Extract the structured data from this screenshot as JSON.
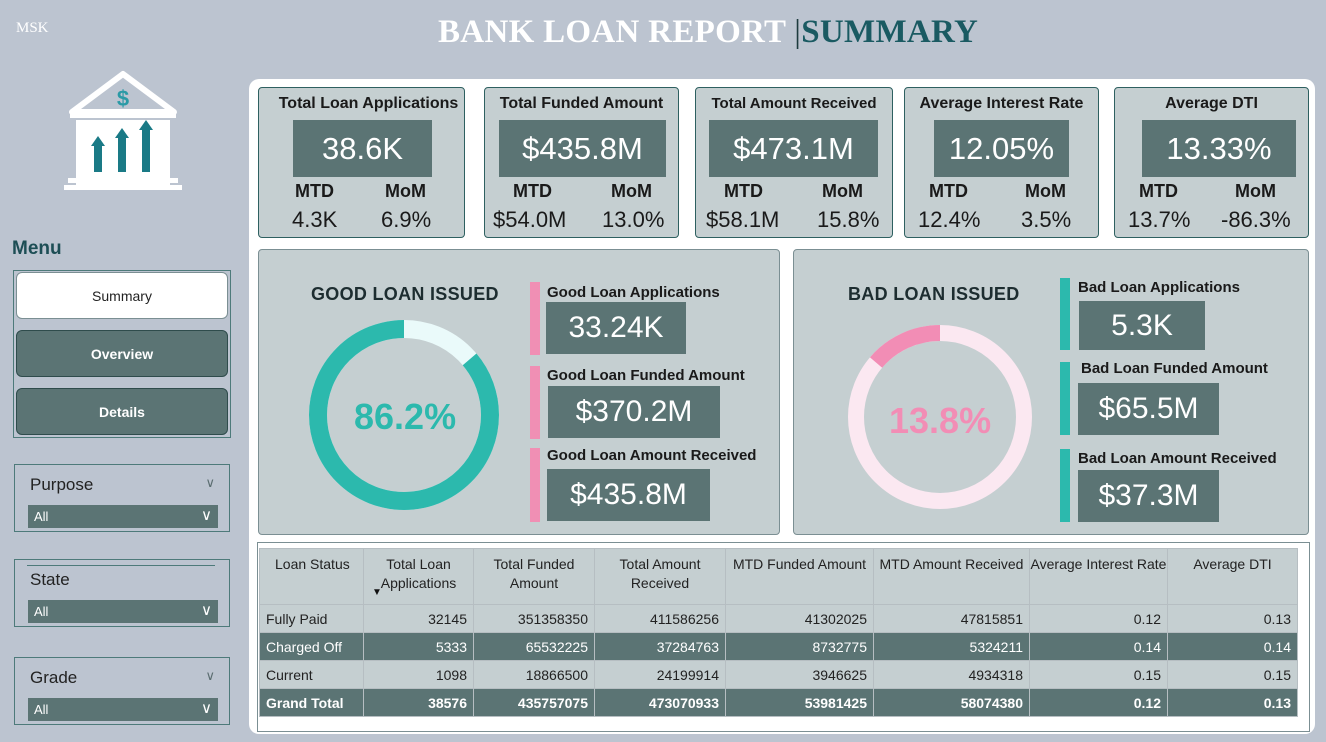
{
  "header": {
    "logo_text": "MSK",
    "title_part1": "BANK LOAN REPORT ",
    "title_sep": "|",
    "title_part2": "SUMMARY"
  },
  "sidebar": {
    "menu_label": "Menu",
    "nav": [
      {
        "label": "Summary",
        "active": true
      },
      {
        "label": "Overview",
        "active": false
      },
      {
        "label": "Details",
        "active": false
      }
    ],
    "filters": [
      {
        "title": "Purpose",
        "selected": "All"
      },
      {
        "title": "State",
        "selected": "All"
      },
      {
        "title": "Grade",
        "selected": "All"
      }
    ]
  },
  "kpis": [
    {
      "title": "Total Loan Applications",
      "value": "38.6K",
      "mtd_label": "MTD",
      "mom_label": "MoM",
      "mtd": "4.3K",
      "mom": "6.9%"
    },
    {
      "title": "Total Funded Amount",
      "value": "$435.8M",
      "mtd_label": "MTD",
      "mom_label": "MoM",
      "mtd": "$54.0M",
      "mom": "13.0%"
    },
    {
      "title": "Total Amount Received",
      "value": "$473.1M",
      "mtd_label": "MTD",
      "mom_label": "MoM",
      "mtd": "$58.1M",
      "mom": "15.8%"
    },
    {
      "title": "Average Interest Rate",
      "value": "12.05%",
      "mtd_label": "MTD",
      "mom_label": "MoM",
      "mtd": "12.4%",
      "mom": "3.5%"
    },
    {
      "title": "Average DTI",
      "value": "13.33%",
      "mtd_label": "MTD",
      "mom_label": "MoM",
      "mtd": "13.7%",
      "mom": "-86.3%"
    }
  ],
  "good_loan": {
    "title": "GOOD LOAN ISSUED",
    "percent_label": "86.2%",
    "percent": 86.2,
    "color": "#2cb9ad",
    "track_color": "#eafafa",
    "bar_color": "#f08fb4",
    "metrics": [
      {
        "label": "Good Loan Applications",
        "value": "33.24K"
      },
      {
        "label": "Good Loan Funded Amount",
        "value": "$370.2M"
      },
      {
        "label": "Good Loan Amount Received",
        "value": "$435.8M"
      }
    ]
  },
  "bad_loan": {
    "title": "BAD LOAN ISSUED",
    "percent_label": "13.8%",
    "percent": 13.8,
    "color": "#f28db5",
    "track_color": "#fbe8f1",
    "bar_color": "#2cb9ad",
    "metrics": [
      {
        "label": "Bad Loan Applications",
        "value": "5.3K"
      },
      {
        "label": "Bad Loan Funded Amount",
        "value": "$65.5M"
      },
      {
        "label": "Bad Loan Amount Received",
        "value": "$37.3M"
      }
    ]
  },
  "table": {
    "headers": [
      "Loan Status",
      "Total Loan Applications",
      "Total Funded Amount",
      "Total Amount Received",
      "MTD Funded Amount",
      "MTD Amount Received",
      "Average Interest Rate",
      "Average DTI"
    ],
    "rows": [
      {
        "cells": [
          "Fully Paid",
          "32145",
          "351358350",
          "411586256",
          "41302025",
          "47815851",
          "0.12",
          "0.13"
        ]
      },
      {
        "cells": [
          "Charged Off",
          "5333",
          "65532225",
          "37284763",
          "8732775",
          "5324211",
          "0.14",
          "0.14"
        ]
      },
      {
        "cells": [
          "Current",
          "1098",
          "18866500",
          "24199914",
          "3946625",
          "4934318",
          "0.15",
          "0.15"
        ]
      }
    ],
    "total": {
      "cells": [
        "Grand Total",
        "38576",
        "435757075",
        "473070933",
        "53981425",
        "58074380",
        "0.12",
        "0.13"
      ]
    }
  }
}
